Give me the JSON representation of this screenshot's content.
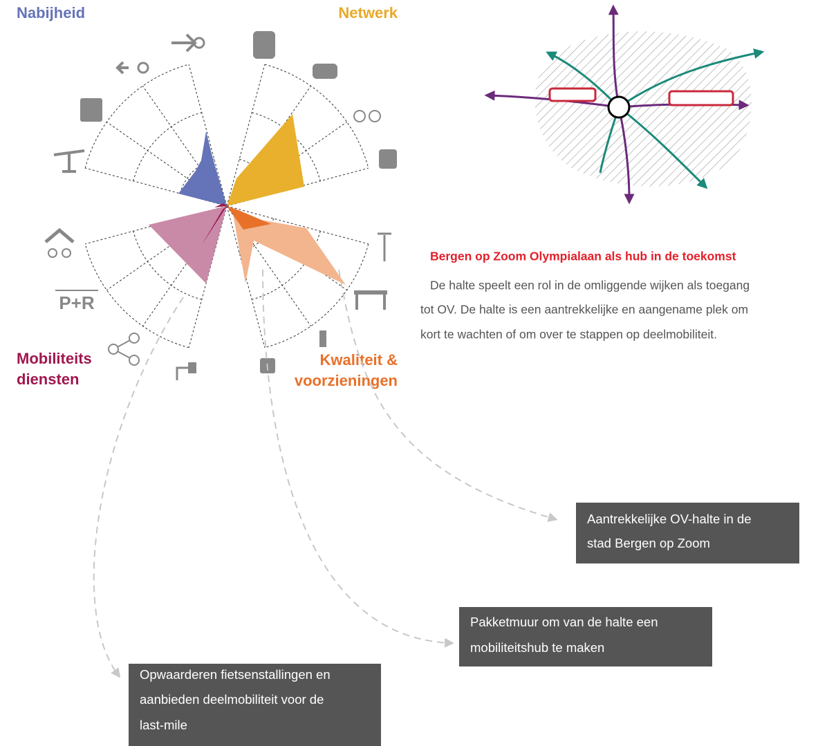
{
  "radar": {
    "groups": {
      "nabijheid": [
        "Nabijheid"
      ],
      "netwerk": [
        "Netwerk"
      ],
      "mobiliteitsdiensten": [
        "Mobiliteits",
        "diensten"
      ],
      "kwaliteit": [
        "Kwaliteit &",
        "voorzieningen"
      ]
    },
    "icon_label": "P+R"
  },
  "description": {
    "title": "Bergen op Zoom Olympialaan als hub in de toekomst",
    "lines": [
      "De halte speelt een rol in de omliggende wijken als toegang",
      "tot OV. De halte is een aantrekkelijke en aangename plek om",
      "kort te wachten of om over te stappen op deelmobiliteit."
    ]
  },
  "callouts": [
    {
      "lines": [
        "Aantrekkelijke OV-halte in de",
        "stad Bergen op Zoom"
      ]
    },
    {
      "lines": [
        "Pakketmuur om van de halte een",
        "mobiliteitshub te maken"
      ]
    },
    {
      "lines": [
        "Opwaarderen fietsenstallingen en",
        "aanbieden deelmobiliteit voor de",
        "last-mile"
      ]
    }
  ]
}
